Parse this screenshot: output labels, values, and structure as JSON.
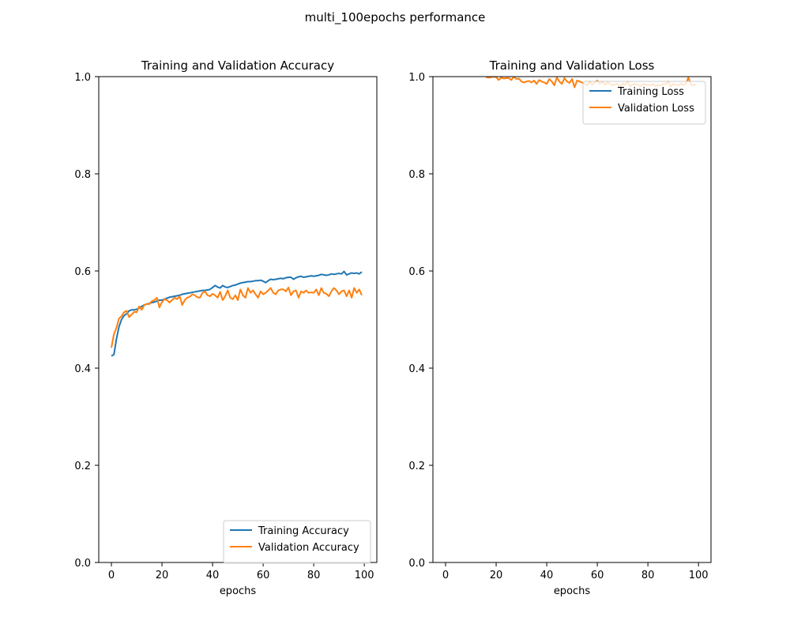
{
  "figure": {
    "suptitle": "multi_100epochs performance"
  },
  "colors": {
    "training": "#1f77b4",
    "validation": "#ff7f0e"
  },
  "chart_data": [
    {
      "type": "line",
      "title": "Training and Validation Accuracy",
      "xlabel": "epochs",
      "ylabel": "",
      "xlim": [
        -5,
        104.95
      ],
      "ylim": [
        0.0,
        1.0
      ],
      "xticks": [
        0,
        20,
        40,
        60,
        80,
        100
      ],
      "xtick_labels": [
        "0",
        "20",
        "40",
        "60",
        "80",
        "100"
      ],
      "yticks": [
        0.0,
        0.2,
        0.4,
        0.6,
        0.8,
        1.0
      ],
      "ytick_labels": [
        "0.0",
        "0.2",
        "0.4",
        "0.6",
        "0.8",
        "1.0"
      ],
      "grid": false,
      "legend_position": "lower right",
      "series": [
        {
          "name": "Training Accuracy",
          "color": "#1f77b4",
          "x": [
            0,
            1,
            2,
            3,
            4,
            5,
            6,
            7,
            8,
            9,
            10,
            11,
            12,
            13,
            14,
            15,
            16,
            17,
            18,
            19,
            20,
            21,
            22,
            23,
            24,
            25,
            26,
            27,
            28,
            29,
            30,
            31,
            32,
            33,
            34,
            35,
            36,
            37,
            38,
            39,
            40,
            41,
            42,
            43,
            44,
            45,
            46,
            47,
            48,
            49,
            50,
            51,
            52,
            53,
            54,
            55,
            56,
            57,
            58,
            59,
            60,
            61,
            62,
            63,
            64,
            65,
            66,
            67,
            68,
            69,
            70,
            71,
            72,
            73,
            74,
            75,
            76,
            77,
            78,
            79,
            80,
            81,
            82,
            83,
            84,
            85,
            86,
            87,
            88,
            89,
            90,
            91,
            92,
            93,
            94,
            95,
            96,
            97,
            98,
            99
          ],
          "values": [
            0.425,
            0.428,
            0.46,
            0.485,
            0.5,
            0.508,
            0.512,
            0.518,
            0.52,
            0.52,
            0.521,
            0.524,
            0.527,
            0.53,
            0.532,
            0.533,
            0.535,
            0.536,
            0.538,
            0.54,
            0.54,
            0.542,
            0.544,
            0.546,
            0.547,
            0.548,
            0.549,
            0.55,
            0.552,
            0.553,
            0.554,
            0.555,
            0.556,
            0.557,
            0.558,
            0.559,
            0.56,
            0.56,
            0.561,
            0.562,
            0.566,
            0.57,
            0.567,
            0.565,
            0.57,
            0.567,
            0.566,
            0.568,
            0.57,
            0.571,
            0.573,
            0.575,
            0.576,
            0.577,
            0.578,
            0.578,
            0.579,
            0.58,
            0.58,
            0.581,
            0.579,
            0.576,
            0.58,
            0.583,
            0.582,
            0.583,
            0.584,
            0.585,
            0.584,
            0.586,
            0.587,
            0.587,
            0.583,
            0.586,
            0.588,
            0.589,
            0.587,
            0.588,
            0.589,
            0.59,
            0.589,
            0.59,
            0.591,
            0.593,
            0.592,
            0.591,
            0.592,
            0.594,
            0.593,
            0.594,
            0.595,
            0.594,
            0.599,
            0.592,
            0.594,
            0.596,
            0.595,
            0.596,
            0.594,
            0.598
          ]
        },
        {
          "name": "Validation Accuracy",
          "color": "#ff7f0e",
          "x": [
            0,
            1,
            2,
            3,
            4,
            5,
            6,
            7,
            8,
            9,
            10,
            11,
            12,
            13,
            14,
            15,
            16,
            17,
            18,
            19,
            20,
            21,
            22,
            23,
            24,
            25,
            26,
            27,
            28,
            29,
            30,
            31,
            32,
            33,
            34,
            35,
            36,
            37,
            38,
            39,
            40,
            41,
            42,
            43,
            44,
            45,
            46,
            47,
            48,
            49,
            50,
            51,
            52,
            53,
            54,
            55,
            56,
            57,
            58,
            59,
            60,
            61,
            62,
            63,
            64,
            65,
            66,
            67,
            68,
            69,
            70,
            71,
            72,
            73,
            74,
            75,
            76,
            77,
            78,
            79,
            80,
            81,
            82,
            83,
            84,
            85,
            86,
            87,
            88,
            89,
            90,
            91,
            92,
            93,
            94,
            95,
            96,
            97,
            98,
            99
          ],
          "values": [
            0.442,
            0.47,
            0.483,
            0.502,
            0.507,
            0.515,
            0.518,
            0.505,
            0.51,
            0.516,
            0.515,
            0.527,
            0.52,
            0.53,
            0.532,
            0.532,
            0.538,
            0.54,
            0.545,
            0.525,
            0.536,
            0.542,
            0.54,
            0.535,
            0.54,
            0.545,
            0.542,
            0.548,
            0.53,
            0.54,
            0.545,
            0.547,
            0.552,
            0.55,
            0.546,
            0.545,
            0.555,
            0.558,
            0.55,
            0.548,
            0.553,
            0.55,
            0.545,
            0.557,
            0.54,
            0.548,
            0.56,
            0.545,
            0.542,
            0.55,
            0.54,
            0.562,
            0.55,
            0.545,
            0.565,
            0.555,
            0.56,
            0.552,
            0.545,
            0.558,
            0.552,
            0.555,
            0.56,
            0.565,
            0.555,
            0.552,
            0.56,
            0.562,
            0.562,
            0.558,
            0.566,
            0.55,
            0.558,
            0.56,
            0.545,
            0.558,
            0.555,
            0.56,
            0.555,
            0.556,
            0.555,
            0.562,
            0.55,
            0.565,
            0.555,
            0.553,
            0.548,
            0.558,
            0.565,
            0.56,
            0.552,
            0.558,
            0.56,
            0.548,
            0.56,
            0.545,
            0.565,
            0.555,
            0.562,
            0.55
          ]
        }
      ]
    },
    {
      "type": "line",
      "title": "Training and Validation Loss",
      "xlabel": "epochs",
      "ylabel": "",
      "xlim": [
        -5,
        104.95
      ],
      "ylim": [
        0.0,
        1.0
      ],
      "xticks": [
        0,
        20,
        40,
        60,
        80,
        100
      ],
      "xtick_labels": [
        "0",
        "20",
        "40",
        "60",
        "80",
        "100"
      ],
      "yticks": [
        0.0,
        0.2,
        0.4,
        0.6,
        0.8,
        1.0
      ],
      "ytick_labels": [
        "0.0",
        "0.2",
        "0.4",
        "0.6",
        "0.8",
        "1.0"
      ],
      "grid": false,
      "legend_position": "upper right",
      "series": [
        {
          "name": "Training Loss",
          "color": "#1f77b4",
          "x": [],
          "values": []
        },
        {
          "name": "Validation Loss",
          "color": "#ff7f0e",
          "x": [
            16,
            17,
            18,
            19,
            20,
            21,
            22,
            23,
            24,
            25,
            26,
            27,
            28,
            29,
            30,
            31,
            32,
            33,
            34,
            35,
            36,
            37,
            38,
            39,
            40,
            41,
            42,
            43,
            44,
            45,
            46,
            47,
            48,
            49,
            50,
            51,
            52,
            53,
            54,
            55,
            56,
            57,
            58,
            59,
            60,
            61,
            62,
            63,
            64,
            65,
            66,
            67,
            68,
            69,
            70,
            71,
            72,
            73,
            74,
            75,
            76,
            77,
            78,
            79,
            80,
            81,
            82,
            83,
            84,
            85,
            86,
            87,
            88,
            89,
            90,
            91,
            92,
            93,
            94,
            95,
            96,
            97,
            98,
            99
          ],
          "values": [
            0.999,
            0.998,
            0.999,
            1.0,
            0.999,
            0.993,
            0.998,
            0.996,
            0.997,
            0.997,
            0.993,
            1.0,
            0.995,
            0.996,
            0.99,
            0.988,
            0.99,
            0.991,
            0.988,
            0.992,
            0.985,
            0.993,
            0.99,
            0.988,
            0.985,
            0.995,
            0.99,
            0.982,
            0.998,
            0.99,
            0.985,
            0.997,
            0.99,
            0.987,
            0.995,
            0.978,
            0.992,
            0.99,
            0.988,
            0.985,
            0.982,
            0.99,
            0.983,
            0.988,
            0.992,
            0.985,
            0.99,
            0.983,
            0.988,
            0.985,
            0.982,
            0.984,
            0.985,
            0.98,
            0.986,
            0.983,
            0.99,
            0.98,
            0.984,
            0.985,
            0.983,
            0.98,
            0.985,
            0.984,
            0.983,
            0.982,
            0.985,
            0.98,
            0.983,
            0.982,
            0.985,
            0.984,
            0.99,
            0.98,
            0.985,
            0.983,
            0.982,
            0.986,
            0.983,
            0.985,
            0.998,
            0.984,
            0.982,
            0.984
          ]
        }
      ]
    }
  ]
}
